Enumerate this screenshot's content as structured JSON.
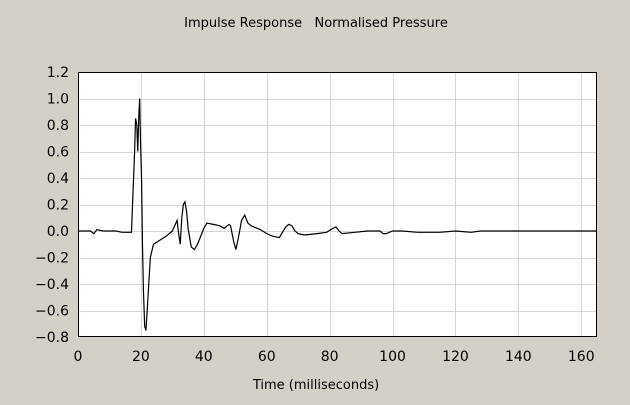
{
  "colors": {
    "window_bg": "#d4d0c8",
    "plot_bg": "#ffffff",
    "grid": "#d6d6d6",
    "line": "#000000",
    "text": "#000000"
  },
  "chart_data": {
    "type": "line",
    "title": "Impulse Response   Normalised Pressure",
    "xlabel": "Time (milliseconds)",
    "ylabel": "",
    "xlim": [
      0,
      165
    ],
    "ylim": [
      -0.8,
      1.2
    ],
    "xticks": [
      0,
      20,
      40,
      60,
      80,
      100,
      120,
      140,
      160
    ],
    "yticks": [
      -0.8,
      -0.6,
      -0.4,
      -0.2,
      0.0,
      0.2,
      0.4,
      0.6,
      0.8,
      1.0,
      1.2
    ],
    "xtick_labels": [
      "0",
      "20",
      "40",
      "60",
      "80",
      "100",
      "120",
      "140",
      "160"
    ],
    "ytick_labels": [
      "−0.8",
      "−0.6",
      "−0.4",
      "−0.2",
      "0.0",
      "0.2",
      "0.4",
      "0.6",
      "0.8",
      "1.0",
      "1.2"
    ],
    "grid": true,
    "series": [
      {
        "color": "#000000",
        "points": [
          [
            0,
            0.0
          ],
          [
            4,
            0.0
          ],
          [
            5,
            -0.02
          ],
          [
            6,
            0.01
          ],
          [
            8,
            0.0
          ],
          [
            12,
            0.0
          ],
          [
            14,
            -0.01
          ],
          [
            17,
            -0.01
          ],
          [
            17.5,
            0.3
          ],
          [
            18,
            0.6
          ],
          [
            18.3,
            0.85
          ],
          [
            18.7,
            0.8
          ],
          [
            19,
            0.6
          ],
          [
            19.3,
            0.85
          ],
          [
            19.6,
            1.0
          ],
          [
            19.9,
            0.65
          ],
          [
            20.2,
            0.4
          ],
          [
            20.5,
            -0.1
          ],
          [
            20.8,
            -0.45
          ],
          [
            21.2,
            -0.72
          ],
          [
            21.6,
            -0.75
          ],
          [
            22.0,
            -0.6
          ],
          [
            22.5,
            -0.4
          ],
          [
            23,
            -0.2
          ],
          [
            24,
            -0.1
          ],
          [
            26,
            -0.07
          ],
          [
            28,
            -0.04
          ],
          [
            30,
            0.0
          ],
          [
            31.5,
            0.08
          ],
          [
            32.0,
            -0.02
          ],
          [
            32.5,
            -0.1
          ],
          [
            33,
            0.1
          ],
          [
            33.5,
            0.2
          ],
          [
            34,
            0.22
          ],
          [
            34.5,
            0.15
          ],
          [
            35,
            0.02
          ],
          [
            36,
            -0.12
          ],
          [
            37,
            -0.14
          ],
          [
            38,
            -0.1
          ],
          [
            40,
            0.02
          ],
          [
            41,
            0.06
          ],
          [
            43,
            0.05
          ],
          [
            45,
            0.04
          ],
          [
            46.5,
            0.02
          ],
          [
            48,
            0.05
          ],
          [
            48.5,
            0.04
          ],
          [
            49.5,
            -0.08
          ],
          [
            50.2,
            -0.14
          ],
          [
            51,
            -0.05
          ],
          [
            52,
            0.08
          ],
          [
            53,
            0.12
          ],
          [
            54,
            0.06
          ],
          [
            55,
            0.04
          ],
          [
            58,
            0.01
          ],
          [
            60,
            -0.02
          ],
          [
            62,
            -0.04
          ],
          [
            64,
            -0.05
          ],
          [
            65,
            -0.01
          ],
          [
            66,
            0.03
          ],
          [
            67,
            0.05
          ],
          [
            68,
            0.04
          ],
          [
            69,
            0.0
          ],
          [
            70,
            -0.02
          ],
          [
            72,
            -0.03
          ],
          [
            76,
            -0.02
          ],
          [
            79,
            -0.01
          ],
          [
            81,
            0.02
          ],
          [
            82,
            0.03
          ],
          [
            83,
            0.0
          ],
          [
            84,
            -0.02
          ],
          [
            88,
            -0.01
          ],
          [
            92,
            0.0
          ],
          [
            96,
            0.0
          ],
          [
            97,
            -0.02
          ],
          [
            98,
            -0.02
          ],
          [
            100,
            0.0
          ],
          [
            103,
            0.0
          ],
          [
            108,
            -0.01
          ],
          [
            115,
            -0.01
          ],
          [
            120,
            0.0
          ],
          [
            125,
            -0.01
          ],
          [
            128,
            0.0
          ],
          [
            135,
            0.0
          ],
          [
            145,
            0.0
          ],
          [
            155,
            0.0
          ],
          [
            165,
            0.0
          ]
        ]
      }
    ]
  }
}
